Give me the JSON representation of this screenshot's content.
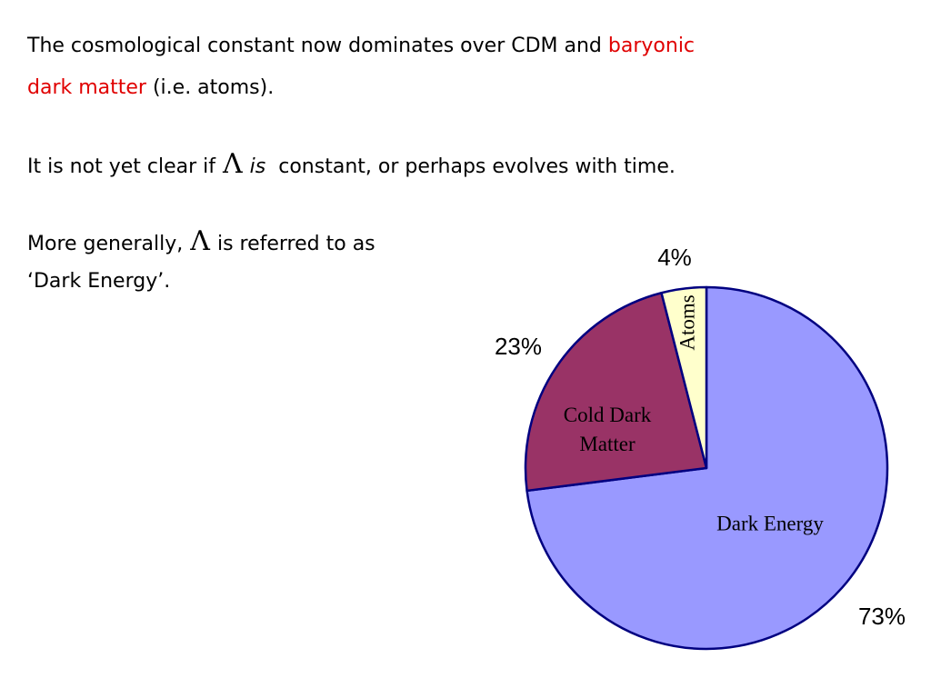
{
  "text": {
    "p1": {
      "line1": [
        "The cosmological constant now dominates over CDM and",
        "baryonic"
      ],
      "line2": [
        "dark matter",
        "(i.e. atoms)."
      ]
    },
    "p2": [
      "It is not yet clear if",
      "Λ",
      "is",
      "constant, or perhaps evolves with time."
    ],
    "p3": {
      "line1": [
        "More generally,",
        "Λ",
        "is referred to as"
      ],
      "line2": "‘Dark Energy’."
    }
  },
  "chart_data": {
    "type": "pie",
    "categories": [
      "Dark Energy",
      "Cold Dark Matter",
      "Atoms"
    ],
    "values": [
      73,
      23,
      4
    ],
    "value_labels": [
      "73%",
      "23%",
      "4%"
    ],
    "colors": [
      "#9999ff",
      "#993366",
      "#ffffcc"
    ]
  }
}
